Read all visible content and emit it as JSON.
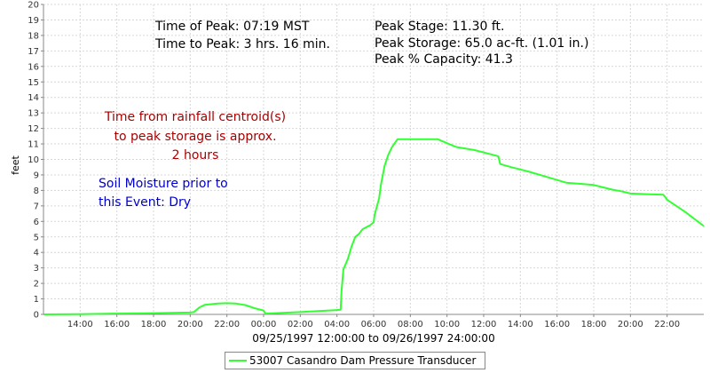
{
  "chart_data": {
    "type": "line",
    "ylabel": "feet",
    "xlabel": "09/25/1997 12:00:00 to 09/26/1997 24:00:00",
    "x_range_hours": [
      12,
      48
    ],
    "ylim": [
      0,
      20
    ],
    "y_ticks": [
      0,
      1,
      2,
      3,
      4,
      5,
      6,
      7,
      8,
      9,
      10,
      11,
      12,
      13,
      14,
      15,
      16,
      17,
      18,
      19,
      20
    ],
    "x_ticks": [
      {
        "h": 14,
        "label": "14:00"
      },
      {
        "h": 16,
        "label": "16:00"
      },
      {
        "h": 18,
        "label": "18:00"
      },
      {
        "h": 20,
        "label": "20:00"
      },
      {
        "h": 22,
        "label": "22:00"
      },
      {
        "h": 24,
        "label": "00:00"
      },
      {
        "h": 26,
        "label": "02:00"
      },
      {
        "h": 28,
        "label": "04:00"
      },
      {
        "h": 30,
        "label": "06:00"
      },
      {
        "h": 32,
        "label": "08:00"
      },
      {
        "h": 34,
        "label": "10:00"
      },
      {
        "h": 36,
        "label": "12:00"
      },
      {
        "h": 38,
        "label": "14:00"
      },
      {
        "h": 40,
        "label": "16:00"
      },
      {
        "h": 42,
        "label": "18:00"
      },
      {
        "h": 44,
        "label": "20:00"
      },
      {
        "h": 46,
        "label": "22:00"
      }
    ],
    "grid": true,
    "series": [
      {
        "name": "53007 Casandro Dam Pressure Transducer",
        "color": "#33ff33",
        "points": [
          [
            12,
            0.0
          ],
          [
            14,
            0.02
          ],
          [
            16,
            0.05
          ],
          [
            18,
            0.08
          ],
          [
            20,
            0.12
          ],
          [
            20.2,
            0.15
          ],
          [
            20.5,
            0.45
          ],
          [
            20.8,
            0.62
          ],
          [
            21.5,
            0.7
          ],
          [
            22.0,
            0.72
          ],
          [
            22.5,
            0.7
          ],
          [
            23.0,
            0.6
          ],
          [
            23.5,
            0.4
          ],
          [
            24.0,
            0.25
          ],
          [
            24.1,
            0.05
          ],
          [
            26,
            0.15
          ],
          [
            28.0,
            0.28
          ],
          [
            28.2,
            0.3
          ],
          [
            28.25,
            1.5
          ],
          [
            28.35,
            2.9
          ],
          [
            28.6,
            3.6
          ],
          [
            28.8,
            4.4
          ],
          [
            29.0,
            5.0
          ],
          [
            29.2,
            5.2
          ],
          [
            29.4,
            5.5
          ],
          [
            29.8,
            5.75
          ],
          [
            30.0,
            5.95
          ],
          [
            30.05,
            6.4
          ],
          [
            30.3,
            7.5
          ],
          [
            30.4,
            8.4
          ],
          [
            30.6,
            9.6
          ],
          [
            30.8,
            10.3
          ],
          [
            31.0,
            10.8
          ],
          [
            31.3,
            11.3
          ],
          [
            32.0,
            11.3
          ],
          [
            33.5,
            11.3
          ],
          [
            34.5,
            10.8
          ],
          [
            35.5,
            10.6
          ],
          [
            36.5,
            10.3
          ],
          [
            36.8,
            10.2
          ],
          [
            36.9,
            9.7
          ],
          [
            37.5,
            9.5
          ],
          [
            38.0,
            9.35
          ],
          [
            38.5,
            9.2
          ],
          [
            39.5,
            8.85
          ],
          [
            40.5,
            8.5
          ],
          [
            41.5,
            8.4
          ],
          [
            42.0,
            8.35
          ],
          [
            42.5,
            8.2
          ],
          [
            43.0,
            8.05
          ],
          [
            43.5,
            7.95
          ],
          [
            44.0,
            7.8
          ],
          [
            45.0,
            7.75
          ],
          [
            45.8,
            7.72
          ],
          [
            46.0,
            7.4
          ],
          [
            47.0,
            6.6
          ],
          [
            48.0,
            5.7
          ]
        ]
      }
    ]
  },
  "info": {
    "time_of_peak": "Time of Peak: 07:19 MST",
    "time_to_peak": "Time to Peak: 3 hrs. 16 min.",
    "peak_stage": "Peak Stage: 11.30 ft.",
    "peak_storage": "Peak Storage: 65.0 ac-ft. (1.01 in.)",
    "peak_capacity": "Peak % Capacity: 41.3"
  },
  "notes": {
    "centroid_line1": "Time from rainfall centroid(s)",
    "centroid_line2": "to peak storage is approx.",
    "centroid_line3": "2 hours",
    "soil_line1": "Soil Moisture prior to",
    "soil_line2": "this Event: Dry"
  },
  "legend": {
    "label": "53007 Casandro Dam Pressure Transducer"
  }
}
